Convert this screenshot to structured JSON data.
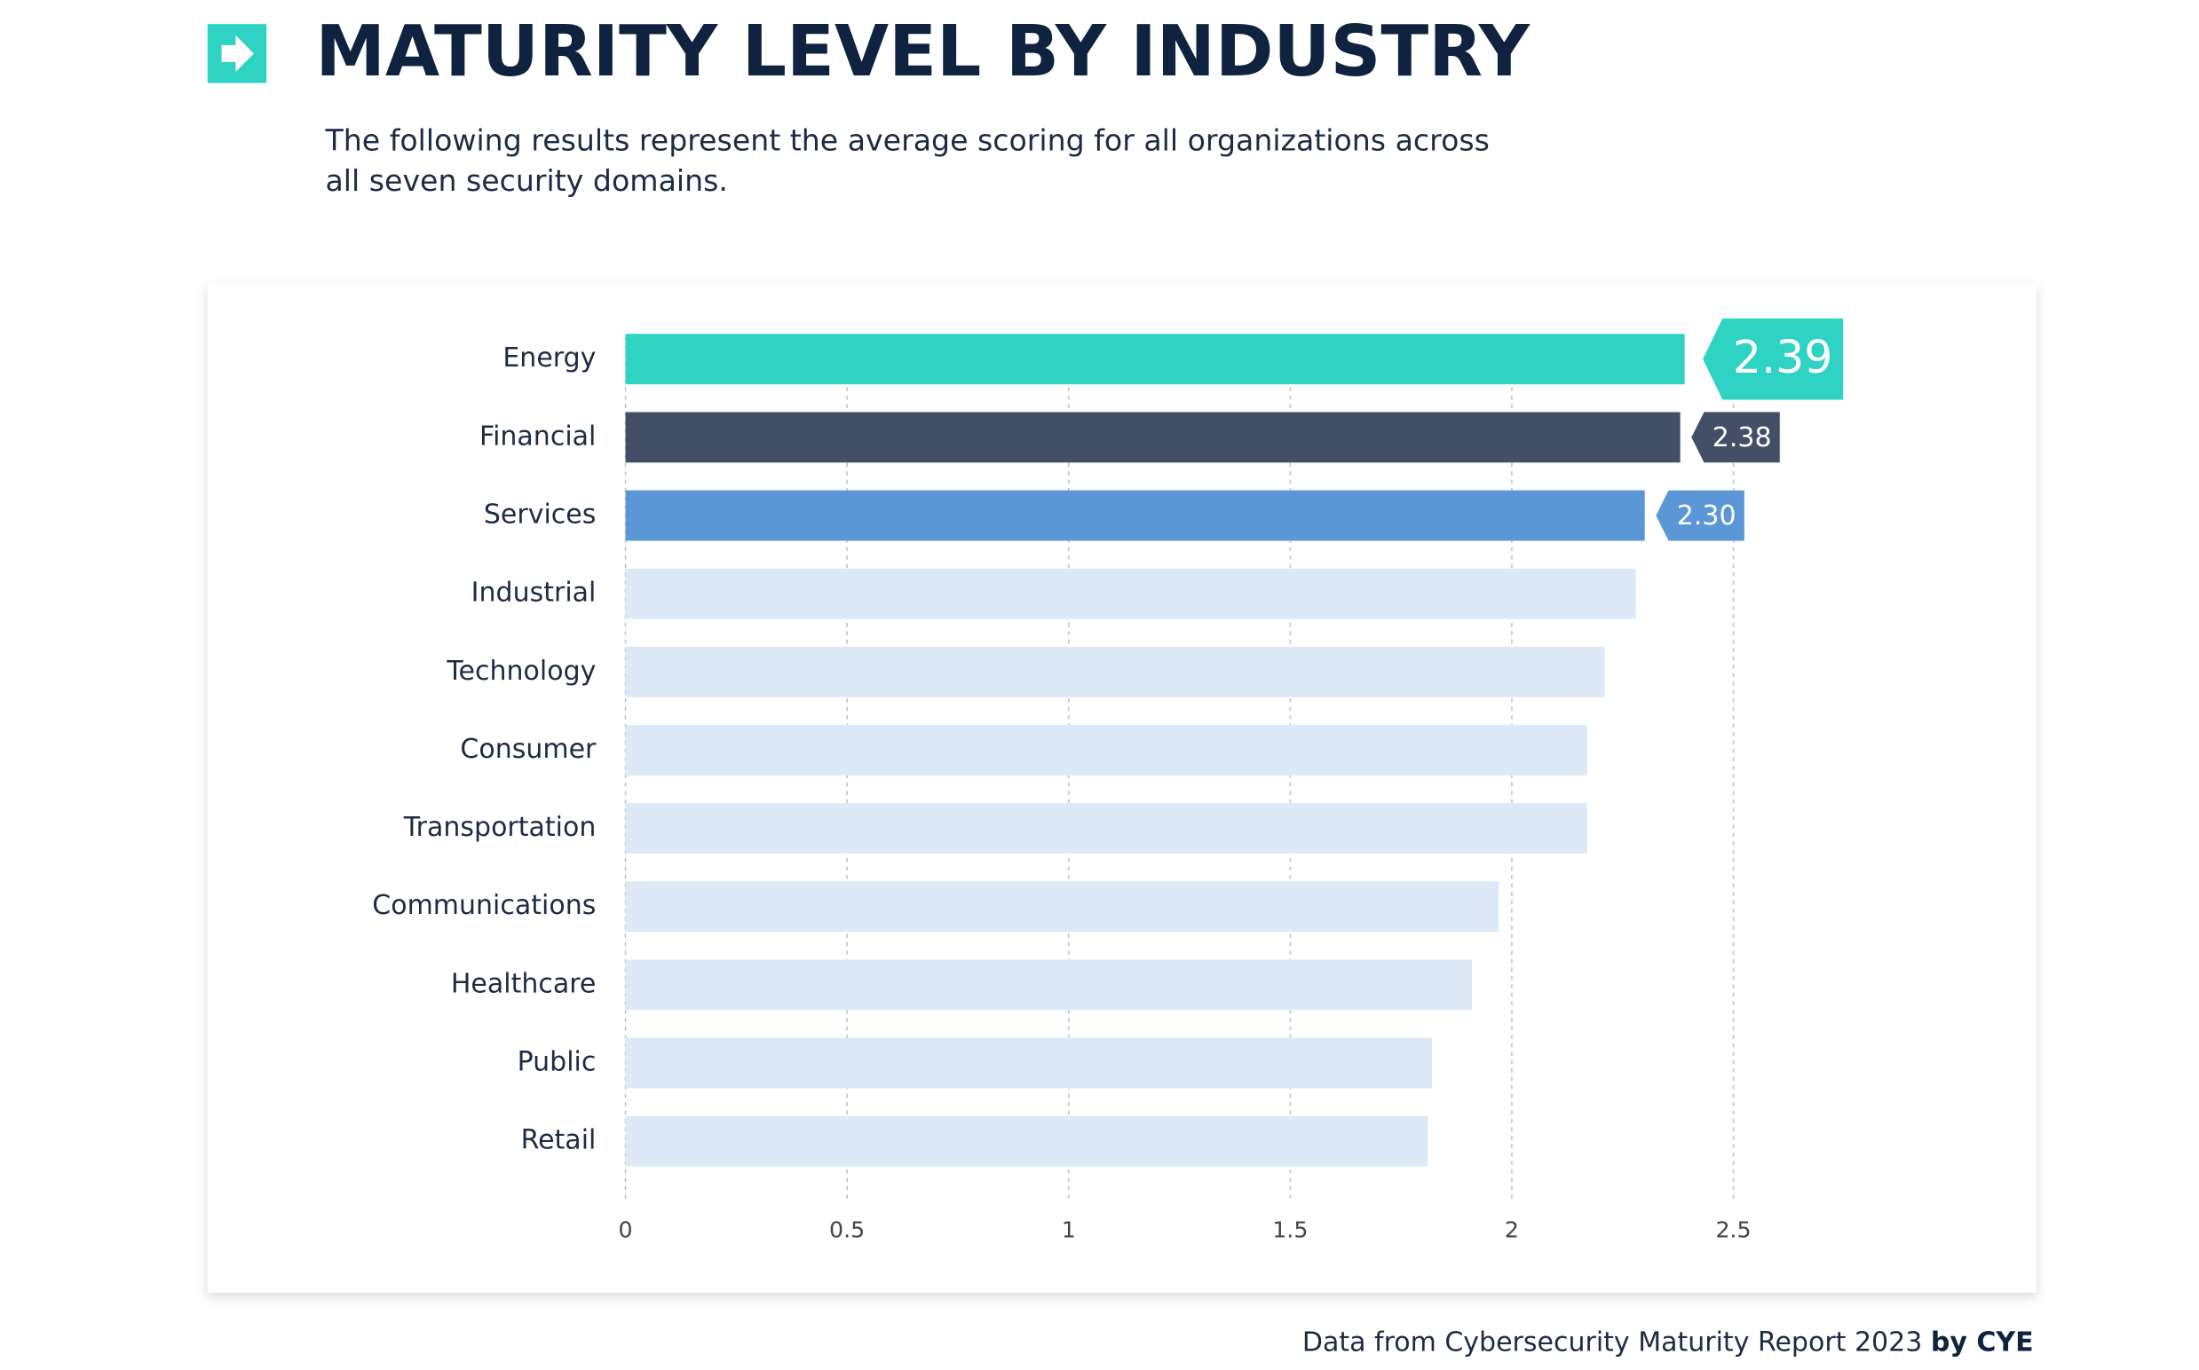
{
  "header": {
    "title": "MATURITY LEVEL BY INDUSTRY",
    "subtitle": [
      "The following results represent the average scoring for all organizations across",
      "all seven security domains."
    ]
  },
  "chart_data": {
    "type": "barh",
    "categories": [
      "Energy",
      "Financial",
      "Services",
      "Industrial",
      "Technology",
      "Consumer",
      "Transportation",
      "Communications",
      "Healthcare",
      "Public",
      "Retail"
    ],
    "values": [
      2.39,
      2.38,
      2.3,
      2.28,
      2.21,
      2.17,
      2.17,
      1.97,
      1.91,
      1.82,
      1.81
    ],
    "value_labels": [
      "2.39",
      "2.38",
      "2.30",
      null,
      null,
      null,
      null,
      null,
      null,
      null,
      null
    ],
    "colors": [
      "#2fd3c4",
      "#434f66",
      "#5b97d6",
      "#dde9f7",
      "#dde9f7",
      "#dde9f7",
      "#dde9f7",
      "#dde9f7",
      "#dde9f7",
      "#dde9f7",
      "#dde9f7"
    ],
    "xlim": [
      0,
      2.5
    ],
    "xticks": [
      0,
      0.5,
      1,
      1.5,
      2,
      2.5
    ],
    "grid": true
  },
  "footer": {
    "source": "Data from Cybersecurity Maturity Report 2023",
    "brand": "by CYE"
  }
}
